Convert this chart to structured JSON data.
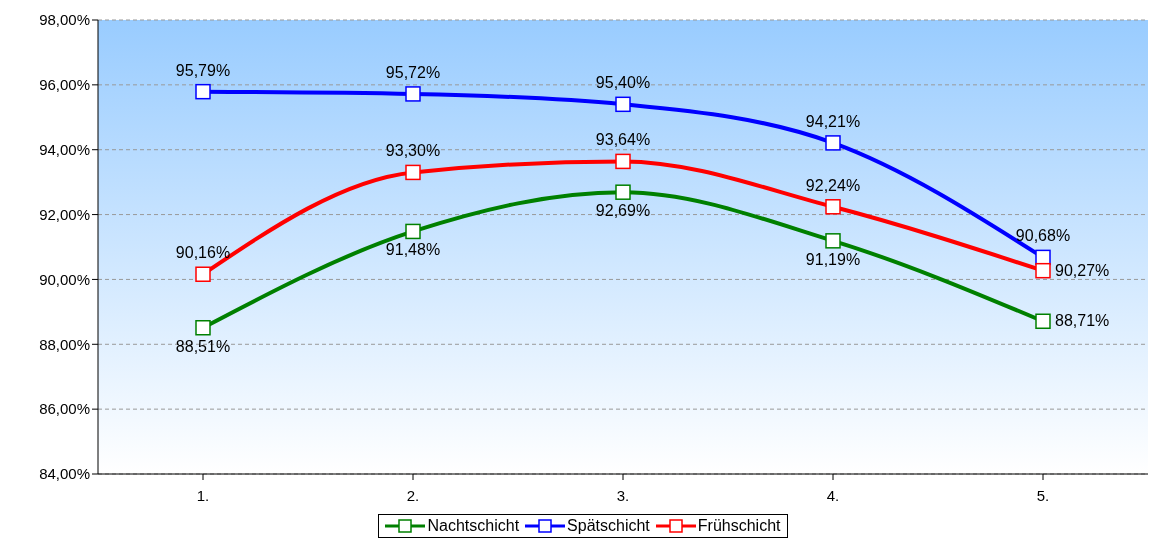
{
  "chart_data": {
    "type": "line",
    "categories": [
      "1.",
      "2.",
      "3.",
      "4.",
      "5."
    ],
    "series": [
      {
        "name": "Nachtschicht",
        "color": "#008000",
        "values": [
          88.51,
          91.48,
          92.69,
          91.19,
          88.71
        ],
        "value_labels": [
          "88,51%",
          "91,48%",
          "92,69%",
          "91,19%",
          "88,71%"
        ]
      },
      {
        "name": "Spätschicht",
        "color": "#0000ff",
        "values": [
          95.79,
          95.72,
          95.4,
          94.21,
          90.68
        ],
        "value_labels": [
          "95,79%",
          "95,72%",
          "95,40%",
          "94,21%",
          "90,68%"
        ]
      },
      {
        "name": "Frühschicht",
        "color": "#ff0000",
        "values": [
          90.16,
          93.3,
          93.64,
          92.24,
          90.27
        ],
        "value_labels": [
          "90,16%",
          "93,30%",
          "93,64%",
          "92,24%",
          "90,27%"
        ]
      }
    ],
    "ylim": [
      84,
      98
    ],
    "yticks": [
      {
        "value": 84,
        "label": "84,00%"
      },
      {
        "value": 86,
        "label": "86,00%"
      },
      {
        "value": 88,
        "label": "88,00%"
      },
      {
        "value": 90,
        "label": "90,00%"
      },
      {
        "value": 92,
        "label": "92,00%"
      },
      {
        "value": 94,
        "label": "94,00%"
      },
      {
        "value": 96,
        "label": "96,00%"
      },
      {
        "value": 98,
        "label": "98,00%"
      }
    ],
    "grid": "y",
    "legend": "bottom",
    "marker": "square",
    "line_style": "solid"
  }
}
